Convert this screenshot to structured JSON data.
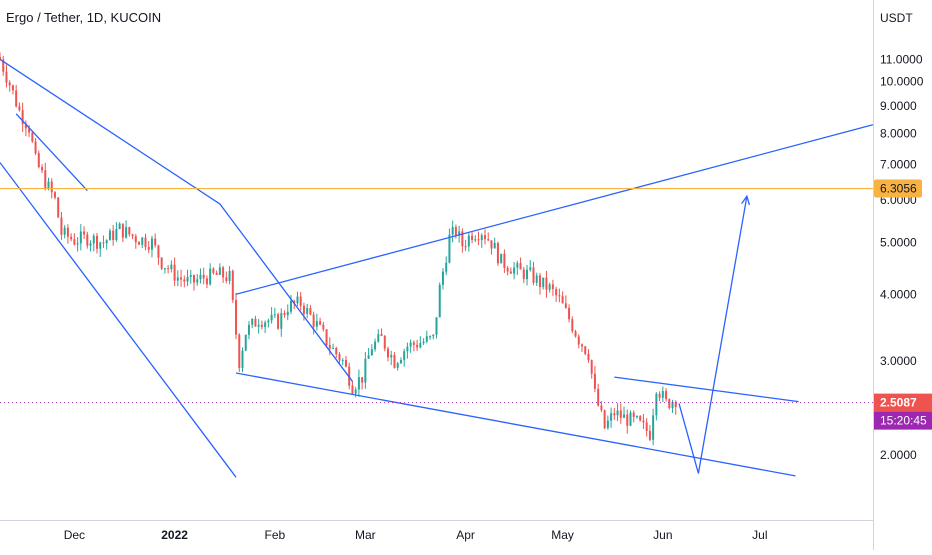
{
  "title": "Ergo / Tether, 1D, KUCOIN",
  "colors": {
    "up": "#26a69a",
    "down": "#ef5350",
    "drawing": "#2962ff",
    "hline": "#f7b241",
    "price_tag": "#ef5350",
    "timer_tag": "#9c27b0",
    "hline_tag": "#f7b241",
    "grid": "#eef0f4",
    "axis_text": "#131722",
    "dotted": "#9c27b0"
  },
  "chart_data": {
    "type": "candlestick",
    "title": "Ergo / Tether, 1D, KUCOIN",
    "y_unit": "USDT",
    "y_scale": "log",
    "ylim": [
      1.33,
      14.2
    ],
    "xlim": [
      "2021-11-08",
      "2022-08-05"
    ],
    "grid": false,
    "y_ticks": [
      {
        "value": 11,
        "label": "11.0000"
      },
      {
        "value": 10,
        "label": "10.0000"
      },
      {
        "value": 9,
        "label": "9.0000"
      },
      {
        "value": 8,
        "label": "8.0000"
      },
      {
        "value": 7,
        "label": "7.0000"
      },
      {
        "value": 6,
        "label": "6.0000"
      },
      {
        "value": 5,
        "label": "5.0000"
      },
      {
        "value": 4,
        "label": "4.0000"
      },
      {
        "value": 3,
        "label": "3.0000"
      },
      {
        "value": 2,
        "label": "2.0000"
      }
    ],
    "x_ticks": [
      {
        "date": "2021-12-01",
        "label": "Dec"
      },
      {
        "date": "2022-01-01",
        "label": "2022"
      },
      {
        "date": "2022-02-01",
        "label": "Feb"
      },
      {
        "date": "2022-03-01",
        "label": "Mar"
      },
      {
        "date": "2022-04-01",
        "label": "Apr"
      },
      {
        "date": "2022-05-01",
        "label": "May"
      },
      {
        "date": "2022-06-01",
        "label": "Jun"
      },
      {
        "date": "2022-07-01",
        "label": "Jul"
      }
    ],
    "close_path": [
      [
        "2021-11-08",
        11.0
      ],
      [
        "2021-11-11",
        9.9
      ],
      [
        "2021-11-14",
        8.8
      ],
      [
        "2021-11-17",
        8.2
      ],
      [
        "2021-11-19",
        7.1
      ],
      [
        "2021-11-22",
        6.5
      ],
      [
        "2021-11-25",
        6.0
      ],
      [
        "2021-11-27",
        5.2
      ],
      [
        "2021-12-01",
        5.05
      ],
      [
        "2021-12-05",
        5.1
      ],
      [
        "2021-12-10",
        5.0
      ],
      [
        "2021-12-15",
        5.3
      ],
      [
        "2021-12-20",
        5.1
      ],
      [
        "2021-12-25",
        5.0
      ],
      [
        "2021-12-28",
        4.6
      ],
      [
        "2022-01-02",
        4.3
      ],
      [
        "2022-01-06",
        4.2
      ],
      [
        "2022-01-10",
        4.3
      ],
      [
        "2022-01-15",
        4.35
      ],
      [
        "2022-01-18",
        4.3
      ],
      [
        "2022-01-21",
        3.0
      ],
      [
        "2022-01-23",
        3.4
      ],
      [
        "2022-01-27",
        3.6
      ],
      [
        "2022-02-02",
        3.55
      ],
      [
        "2022-02-05",
        3.8
      ],
      [
        "2022-02-09",
        3.85
      ],
      [
        "2022-02-14",
        3.5
      ],
      [
        "2022-02-18",
        3.2
      ],
      [
        "2022-02-22",
        3.0
      ],
      [
        "2022-02-25",
        2.7
      ],
      [
        "2022-02-28",
        2.8
      ],
      [
        "2022-03-03",
        3.2
      ],
      [
        "2022-03-06",
        3.3
      ],
      [
        "2022-03-10",
        3.0
      ],
      [
        "2022-03-14",
        3.2
      ],
      [
        "2022-03-18",
        3.25
      ],
      [
        "2022-03-22",
        3.3
      ],
      [
        "2022-03-24",
        4.1
      ],
      [
        "2022-03-27",
        5.1
      ],
      [
        "2022-03-29",
        5.25
      ],
      [
        "2022-03-31",
        4.95
      ],
      [
        "2022-04-03",
        5.2
      ],
      [
        "2022-04-06",
        5.25
      ],
      [
        "2022-04-09",
        5.0
      ],
      [
        "2022-04-12",
        4.6
      ],
      [
        "2022-04-15",
        4.5
      ],
      [
        "2022-04-18",
        4.4
      ],
      [
        "2022-04-21",
        4.35
      ],
      [
        "2022-04-24",
        4.2
      ],
      [
        "2022-04-27",
        4.1
      ],
      [
        "2022-04-30",
        3.9
      ],
      [
        "2022-05-03",
        3.6
      ],
      [
        "2022-05-06",
        3.3
      ],
      [
        "2022-05-09",
        3.1
      ],
      [
        "2022-05-11",
        2.6
      ],
      [
        "2022-05-14",
        2.25
      ],
      [
        "2022-05-17",
        2.4
      ],
      [
        "2022-05-20",
        2.35
      ],
      [
        "2022-05-24",
        2.3
      ],
      [
        "2022-05-28",
        2.2
      ],
      [
        "2022-05-30",
        2.7
      ],
      [
        "2022-06-02",
        2.5
      ],
      [
        "2022-06-05",
        2.55
      ]
    ],
    "drawings": [
      {
        "name": "upper-channel-line",
        "points": [
          [
            "2021-11-08",
            11.0
          ],
          [
            "2022-01-15",
            5.9
          ],
          [
            "2022-02-25",
            2.75
          ]
        ]
      },
      {
        "name": "inner-fast-line",
        "points": [
          [
            "2021-11-13",
            8.7
          ],
          [
            "2021-12-05",
            6.25
          ]
        ]
      },
      {
        "name": "lower-channel-line",
        "points": [
          [
            "2021-11-08",
            7.05
          ],
          [
            "2022-01-20",
            1.82
          ]
        ]
      },
      {
        "name": "ascending-resistance-line",
        "points": [
          [
            "2022-01-20",
            4.0
          ],
          [
            "2022-08-05",
            8.3
          ]
        ]
      },
      {
        "name": "falling-wedge-support-line",
        "points": [
          [
            "2022-01-20",
            2.85
          ],
          [
            "2022-07-12",
            1.83
          ]
        ]
      },
      {
        "name": "consolidation-top-line",
        "points": [
          [
            "2022-05-17",
            2.8
          ],
          [
            "2022-07-13",
            2.52
          ]
        ]
      },
      {
        "name": "projection-path",
        "points": [
          [
            "2022-06-06",
            2.5
          ],
          [
            "2022-06-12",
            1.85
          ],
          [
            "2022-06-27",
            6.1
          ]
        ],
        "arrow": true
      }
    ],
    "hlines": [
      {
        "name": "resistance-6.3056",
        "value": 6.3056,
        "label": "6.3056"
      }
    ],
    "last_price": {
      "value": 2.5087,
      "label": "2.5087",
      "countdown": "15:20:45"
    }
  }
}
